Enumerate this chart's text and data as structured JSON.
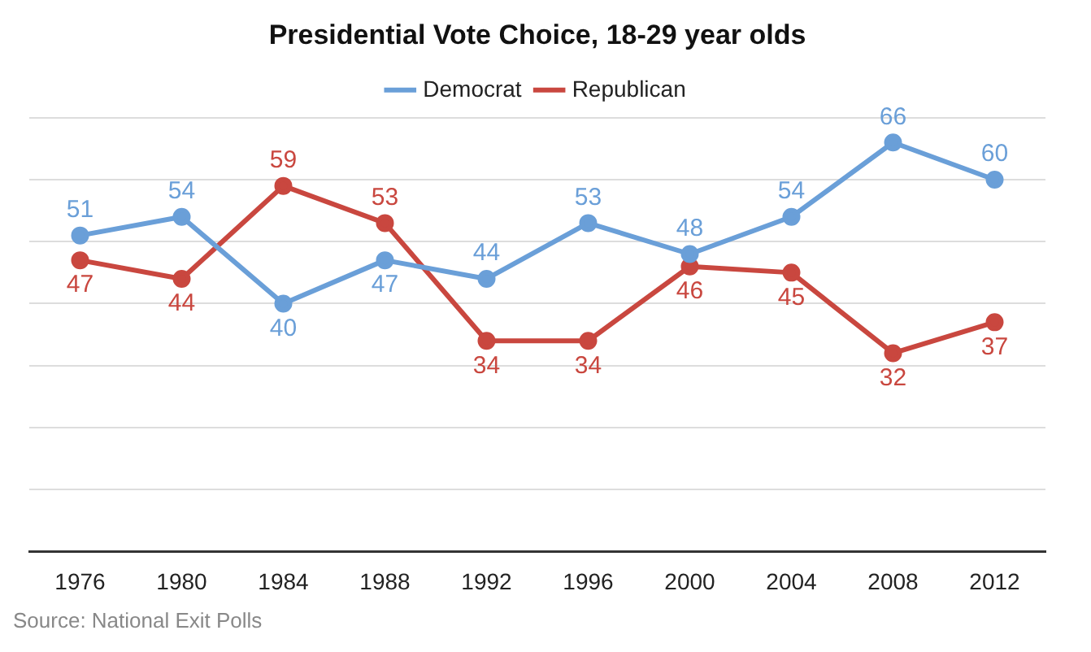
{
  "chart_data": {
    "type": "line",
    "title": "Presidential Vote Choice, 18-29 year olds",
    "categories": [
      "1976",
      "1980",
      "1984",
      "1988",
      "1992",
      "1996",
      "2000",
      "2004",
      "2008",
      "2012"
    ],
    "series": [
      {
        "name": "Democrat",
        "color": "#6a9fd8",
        "values": [
          51,
          54,
          40,
          47,
          44,
          53,
          48,
          54,
          66,
          60
        ]
      },
      {
        "name": "Republican",
        "color": "#c9473f",
        "values": [
          47,
          44,
          59,
          53,
          34,
          34,
          46,
          45,
          32,
          37
        ]
      }
    ],
    "ylim": [
      0,
      70
    ],
    "yticks": [
      {
        "value": 0,
        "label": null
      },
      {
        "value": 10,
        "label": null
      },
      {
        "value": 20,
        "label": null
      },
      {
        "value": 30,
        "label": null
      },
      {
        "value": 40,
        "label": null
      },
      {
        "value": 50,
        "label": null
      },
      {
        "value": 60,
        "label": null
      },
      {
        "value": 70,
        "label": null
      }
    ],
    "tick_labels": "x",
    "grid": "y",
    "legend": "top",
    "marker": "circle",
    "line_style": "solid",
    "data_labels": true,
    "annotations": [
      "Source: National Exit Polls"
    ]
  }
}
